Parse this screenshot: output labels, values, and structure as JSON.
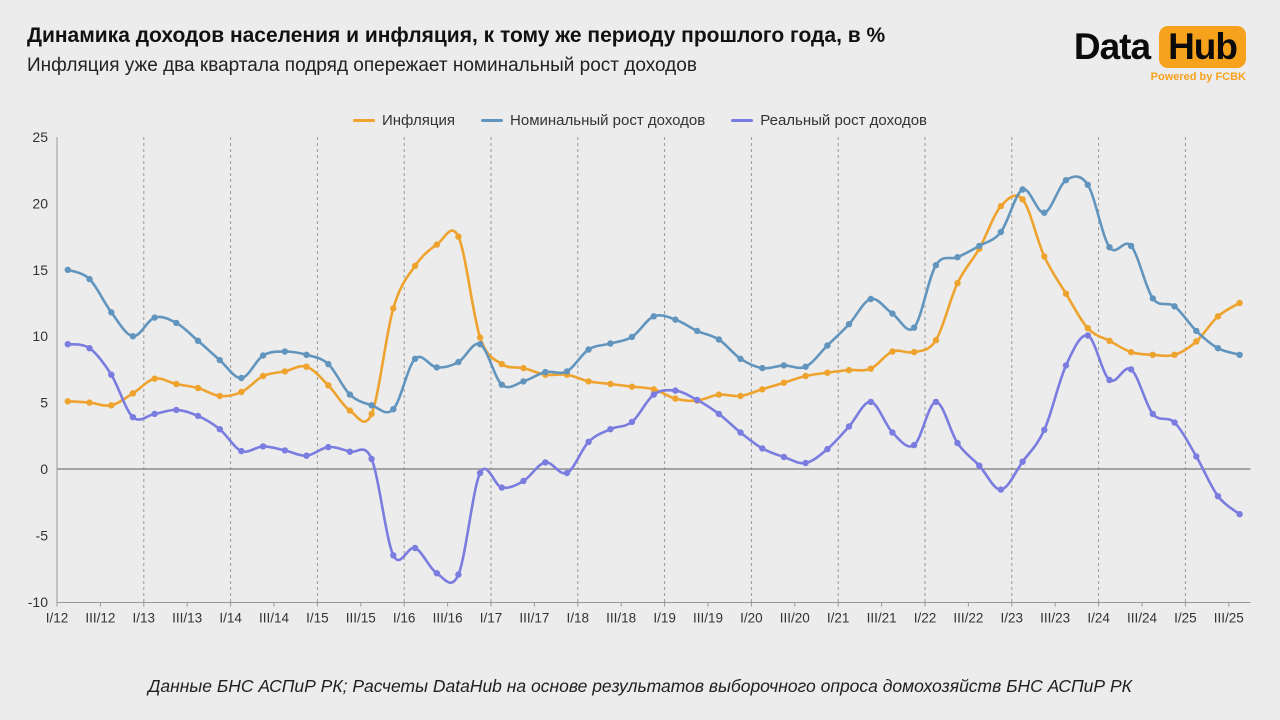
{
  "header": {
    "title": "Динамика доходов населения и инфляция, к тому же периоду прошлого года, в %",
    "subtitle": "Инфляция уже два квартала подряд опережает номинальный рост доходов"
  },
  "logo": {
    "part1": "Data",
    "part2": "Hub",
    "powered": "Powered by FCBK",
    "accent_color": "#F6A21C"
  },
  "legend": [
    {
      "label": "Инфляция",
      "color": "#EEA32E"
    },
    {
      "label": "Номинальный рост доходов",
      "color": "#6295BE"
    },
    {
      "label": "Реальный рост доходов",
      "color": "#7A7CDF"
    }
  ],
  "footer": {
    "source": "Данные БНС АСПиР РК; Расчеты DataHub на основе результатов выборочного опроса домохозяйств БНС АСПиР РК"
  },
  "chart_data": {
    "type": "line",
    "title": "Динамика доходов населения и инфляция, к тому же периоду прошлого года, в %",
    "x_tick_labels": [
      "I/12",
      "III/12",
      "I/13",
      "III/13",
      "I/14",
      "III/14",
      "I/15",
      "III/15",
      "I/16",
      "III/16",
      "I/17",
      "III/17",
      "I/18",
      "III/18",
      "I/19",
      "III/19",
      "I/20",
      "III/20",
      "I/21",
      "III/21",
      "I/22",
      "III/22",
      "I/23",
      "III/23",
      "I/24",
      "III/24",
      "I/25",
      "III/25"
    ],
    "quarters_per_tick": 2,
    "n_points": 55,
    "ylim": [
      -10,
      25
    ],
    "yticks": [
      -10,
      -5,
      0,
      5,
      10,
      15,
      20,
      25
    ],
    "zero_line": true,
    "grid": "vertical-dashed-yearly",
    "legend_position": "top-center",
    "colors": {
      "grid": "#999999",
      "zero_line": "#8C8C8C",
      "axis": "#999999",
      "tick_text": "#333333"
    },
    "series": [
      {
        "name": "Инфляция",
        "color": "#EEA32E",
        "values": [
          5.1,
          5.0,
          4.8,
          5.7,
          6.8,
          6.4,
          6.1,
          5.5,
          5.8,
          7.0,
          7.35,
          7.7,
          6.3,
          4.4,
          4.15,
          12.1,
          15.3,
          16.9,
          17.5,
          9.9,
          7.9,
          7.6,
          7.1,
          7.1,
          6.6,
          6.4,
          6.2,
          6.0,
          5.3,
          5.15,
          5.6,
          5.5,
          6.0,
          6.5,
          7.0,
          7.25,
          7.45,
          7.55,
          8.85,
          8.8,
          9.7,
          14.0,
          16.6,
          19.8,
          20.3,
          16.0,
          13.2,
          10.6,
          9.65,
          8.8,
          8.6,
          8.6,
          9.6,
          11.5,
          12.5
        ]
      },
      {
        "name": "Номинальный рост доходов",
        "color": "#6295BE",
        "values": [
          15.0,
          14.3,
          11.8,
          10.0,
          11.4,
          11.0,
          9.65,
          8.2,
          6.85,
          8.55,
          8.85,
          8.6,
          7.9,
          5.6,
          4.8,
          4.5,
          8.3,
          7.65,
          8.05,
          9.4,
          6.35,
          6.6,
          7.3,
          7.35,
          9.0,
          9.45,
          9.95,
          11.5,
          11.25,
          10.4,
          9.75,
          8.3,
          7.6,
          7.8,
          7.7,
          9.3,
          10.9,
          12.8,
          11.7,
          10.65,
          15.35,
          15.95,
          16.8,
          17.85,
          21.05,
          19.3,
          21.75,
          21.4,
          16.7,
          16.8,
          12.85,
          12.25,
          10.4,
          9.1,
          8.6
        ]
      },
      {
        "name": "Реальный рост доходов",
        "color": "#7A7CDF",
        "values": [
          9.4,
          9.1,
          7.1,
          3.9,
          4.15,
          4.45,
          4.0,
          3.0,
          1.35,
          1.7,
          1.4,
          1.0,
          1.65,
          1.3,
          0.75,
          -6.5,
          -5.95,
          -7.85,
          -7.95,
          -0.3,
          -1.4,
          -0.9,
          0.5,
          -0.3,
          2.05,
          3.0,
          3.55,
          5.6,
          5.9,
          5.2,
          4.15,
          2.75,
          1.55,
          0.9,
          0.45,
          1.5,
          3.2,
          5.05,
          2.75,
          1.8,
          5.05,
          1.95,
          0.25,
          -1.55,
          0.55,
          2.95,
          7.8,
          10.05,
          6.7,
          7.5,
          4.15,
          3.5,
          0.95,
          -2.05,
          -3.4
        ]
      }
    ]
  }
}
